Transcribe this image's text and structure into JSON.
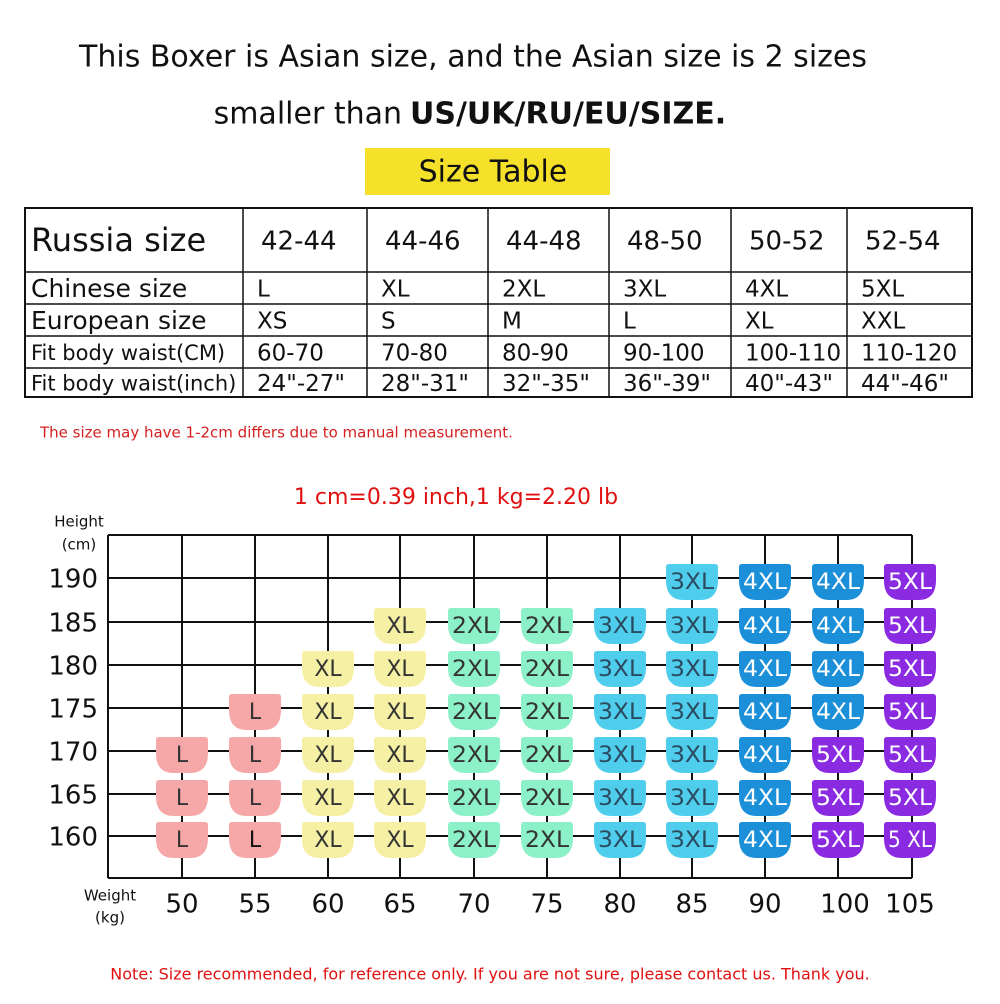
{
  "header": {
    "line1": "This Boxer is Asian size, and the Asian size is 2 sizes",
    "line2_plain": "smaller than",
    "line2_bold": "US/UK/RU/EU/SIZE.",
    "badge": "Size Table"
  },
  "table": {
    "rows": [
      [
        "Russia size",
        "42-44",
        "44-46",
        "44-48",
        "48-50",
        "50-52",
        "52-54"
      ],
      [
        "Chinese size",
        "L",
        "XL",
        "2XL",
        "3XL",
        "4XL",
        "5XL"
      ],
      [
        "European size",
        "XS",
        "S",
        "M",
        "L",
        "XL",
        "XXL"
      ],
      [
        "Fit body waist(CM)",
        "60-70",
        "70-80",
        "80-90",
        "90-100",
        "100-110",
        "110-120"
      ],
      [
        "Fit body waist(inch)",
        "24\"-27\"",
        "28\"-31\"",
        "32\"-35\"",
        "36\"-39\"",
        "40\"-43\"",
        "44\"-46\""
      ]
    ]
  },
  "table_note": "The size may have 1-2cm differs due to manual measurement.",
  "conversion": "1 cm=0.39 inch,1 kg=2.20 lb",
  "grid": {
    "y_title": [
      "Height",
      "(cm)"
    ],
    "x_title": [
      "Weight",
      "(kg)"
    ],
    "heights": [
      "190",
      "185",
      "180",
      "175",
      "170",
      "165",
      "160"
    ],
    "weights": [
      "50",
      "55",
      "60",
      "65",
      "70",
      "75",
      "80",
      "85",
      "90",
      "100",
      "105"
    ],
    "cells": [
      [
        null,
        null,
        null,
        null,
        null,
        null,
        null,
        {
          "size": "3XL",
          "color": "#4fcdec",
          "ink": "#2a4a60"
        },
        {
          "size": "4XL",
          "color": "#1b8fd8",
          "ink": "#ffffff"
        },
        {
          "size": "4XL",
          "color": "#1b8fd8",
          "ink": "#ffffff"
        },
        {
          "size": "5XL",
          "color": "#8a2be2",
          "ink": "#ffffff"
        }
      ],
      [
        null,
        null,
        null,
        {
          "size": "XL",
          "color": "#f6f0a4",
          "ink": "#333333"
        },
        {
          "size": "2XL",
          "color": "#8cf0c8",
          "ink": "#333333"
        },
        {
          "size": "2XL",
          "color": "#8cf0c8",
          "ink": "#333333"
        },
        {
          "size": "3XL",
          "color": "#4fcdec",
          "ink": "#2a4a60"
        },
        {
          "size": "3XL",
          "color": "#4fcdec",
          "ink": "#2a4a60"
        },
        {
          "size": "4XL",
          "color": "#1b8fd8",
          "ink": "#ffffff"
        },
        {
          "size": "4XL",
          "color": "#1b8fd8",
          "ink": "#ffffff"
        },
        {
          "size": "5XL",
          "color": "#8a2be2",
          "ink": "#ffffff"
        }
      ],
      [
        null,
        null,
        {
          "size": "XL",
          "color": "#f6f0a4",
          "ink": "#333333"
        },
        {
          "size": "XL",
          "color": "#f6f0a4",
          "ink": "#333333"
        },
        {
          "size": "2XL",
          "color": "#8cf0c8",
          "ink": "#333333"
        },
        {
          "size": "2XL",
          "color": "#8cf0c8",
          "ink": "#333333"
        },
        {
          "size": "3XL",
          "color": "#4fcdec",
          "ink": "#2a4a60"
        },
        {
          "size": "3XL",
          "color": "#4fcdec",
          "ink": "#2a4a60"
        },
        {
          "size": "4XL",
          "color": "#1b8fd8",
          "ink": "#ffffff"
        },
        {
          "size": "4XL",
          "color": "#1b8fd8",
          "ink": "#ffffff"
        },
        {
          "size": "5XL",
          "color": "#8a2be2",
          "ink": "#ffffff"
        }
      ],
      [
        null,
        {
          "size": "L",
          "color": "#f6a8a8",
          "ink": "#333333"
        },
        {
          "size": "XL",
          "color": "#f6f0a4",
          "ink": "#333333"
        },
        {
          "size": "XL",
          "color": "#f6f0a4",
          "ink": "#333333"
        },
        {
          "size": "2XL",
          "color": "#8cf0c8",
          "ink": "#333333"
        },
        {
          "size": "2XL",
          "color": "#8cf0c8",
          "ink": "#333333"
        },
        {
          "size": "3XL",
          "color": "#4fcdec",
          "ink": "#2a4a60"
        },
        {
          "size": "3XL",
          "color": "#4fcdec",
          "ink": "#2a4a60"
        },
        {
          "size": "4XL",
          "color": "#1b8fd8",
          "ink": "#ffffff"
        },
        {
          "size": "4XL",
          "color": "#1b8fd8",
          "ink": "#ffffff"
        },
        {
          "size": "5XL",
          "color": "#8a2be2",
          "ink": "#ffffff"
        }
      ],
      [
        {
          "size": "L",
          "color": "#f6a8a8",
          "ink": "#333333"
        },
        {
          "size": "L",
          "color": "#f6a8a8",
          "ink": "#333333"
        },
        {
          "size": "XL",
          "color": "#f6f0a4",
          "ink": "#333333"
        },
        {
          "size": "XL",
          "color": "#f6f0a4",
          "ink": "#333333"
        },
        {
          "size": "2XL",
          "color": "#8cf0c8",
          "ink": "#333333"
        },
        {
          "size": "2XL",
          "color": "#8cf0c8",
          "ink": "#333333"
        },
        {
          "size": "3XL",
          "color": "#4fcdec",
          "ink": "#2a4a60"
        },
        {
          "size": "3XL",
          "color": "#4fcdec",
          "ink": "#2a4a60"
        },
        {
          "size": "4XL",
          "color": "#1b8fd8",
          "ink": "#ffffff"
        },
        {
          "size": "5XL",
          "color": "#8a2be2",
          "ink": "#ffffff"
        },
        {
          "size": "5XL",
          "color": "#8a2be2",
          "ink": "#ffffff"
        }
      ],
      [
        {
          "size": "L",
          "color": "#f6a8a8",
          "ink": "#333333"
        },
        {
          "size": "L",
          "color": "#f6a8a8",
          "ink": "#333333"
        },
        {
          "size": "XL",
          "color": "#f6f0a4",
          "ink": "#333333"
        },
        {
          "size": "XL",
          "color": "#f6f0a4",
          "ink": "#333333"
        },
        {
          "size": "2XL",
          "color": "#8cf0c8",
          "ink": "#333333"
        },
        {
          "size": "2XL",
          "color": "#8cf0c8",
          "ink": "#333333"
        },
        {
          "size": "3XL",
          "color": "#4fcdec",
          "ink": "#2a4a60"
        },
        {
          "size": "3XL",
          "color": "#4fcdec",
          "ink": "#2a4a60"
        },
        {
          "size": "4XL",
          "color": "#1b8fd8",
          "ink": "#ffffff"
        },
        {
          "size": "5XL",
          "color": "#8a2be2",
          "ink": "#ffffff"
        },
        {
          "size": "5XL",
          "color": "#8a2be2",
          "ink": "#ffffff"
        }
      ],
      [
        {
          "size": "L",
          "color": "#f6a8a8",
          "ink": "#333333"
        },
        {
          "size": "L",
          "color": "#f6a8a8",
          "ink": "#111111"
        },
        {
          "size": "XL",
          "color": "#f6f0a4",
          "ink": "#333333"
        },
        {
          "size": "XL",
          "color": "#f6f0a4",
          "ink": "#333333"
        },
        {
          "size": "2XL",
          "color": "#8cf0c8",
          "ink": "#333333"
        },
        {
          "size": "2XL",
          "color": "#8cf0c8",
          "ink": "#333333"
        },
        {
          "size": "3XL",
          "color": "#4fcdec",
          "ink": "#2a4a60"
        },
        {
          "size": "3XL",
          "color": "#4fcdec",
          "ink": "#2a4a60"
        },
        {
          "size": "4XL",
          "color": "#1b8fd8",
          "ink": "#ffffff"
        },
        {
          "size": "5XL",
          "color": "#8a2be2",
          "ink": "#ffffff"
        },
        {
          "size": "5 XL",
          "color": "#8a2be2",
          "ink": "#ffffff"
        }
      ]
    ]
  },
  "footer": "Note: Size recommended, for reference only. If you are not sure, please contact us. Thank you."
}
